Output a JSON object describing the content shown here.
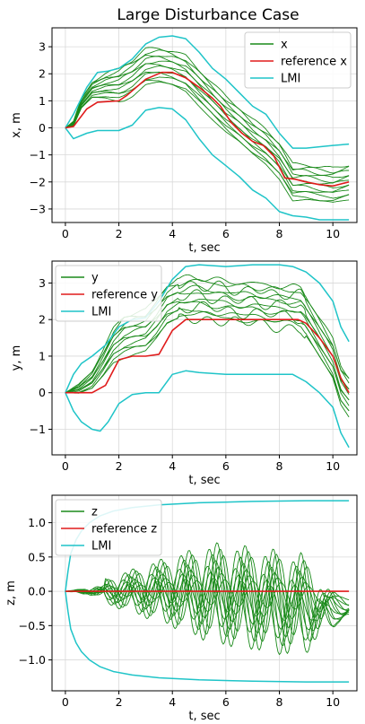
{
  "figure_title": "Large Disturbance Case",
  "colors": {
    "traj": "#1a8a1a",
    "ref": "#e01b1b",
    "lmi": "#1fc4c8",
    "grid": "#d9d9d9"
  },
  "chart_data": [
    {
      "type": "line",
      "id": "x",
      "xlabel": "t, sec",
      "ylabel": "x, m",
      "xlim": [
        -0.5,
        10.9
      ],
      "ylim": [
        -3.5,
        3.7
      ],
      "xticks": [
        0,
        2,
        4,
        6,
        8,
        10
      ],
      "yticks": [
        -3,
        -2,
        -1,
        0,
        1,
        2,
        3
      ],
      "grid": true,
      "legend": {
        "location": "top-right",
        "entries": [
          {
            "label": "x",
            "color": "#1a8a1a"
          },
          {
            "label": "reference x",
            "color": "#e01b1b"
          },
          {
            "label": "LMI",
            "color": "#1fc4c8"
          }
        ]
      },
      "reference": {
        "name": "reference x",
        "x": [
          0,
          0.3,
          0.8,
          1.2,
          2.0,
          2.3,
          3.0,
          3.6,
          4.0,
          4.5,
          5.0,
          5.5,
          5.8,
          6.2,
          6.6,
          7.0,
          7.4,
          7.8,
          8.2,
          8.6,
          9.0,
          9.5,
          10.0,
          10.6
        ],
        "y": [
          0,
          0.05,
          0.7,
          0.95,
          1.0,
          1.2,
          1.8,
          2.05,
          2.05,
          1.85,
          1.5,
          1.1,
          0.8,
          0.2,
          -0.2,
          -0.5,
          -0.65,
          -1.05,
          -1.85,
          -1.9,
          -2.0,
          -2.1,
          -2.15,
          -2.0
        ]
      },
      "bounds": {
        "name": "LMI",
        "upper": {
          "x": [
            0,
            0.3,
            0.8,
            1.2,
            1.6,
            2.0,
            2.5,
            3.0,
            3.5,
            4.0,
            4.5,
            5.0,
            5.5,
            6.0,
            6.5,
            7.0,
            7.5,
            8.0,
            8.5,
            9.0,
            9.5,
            10.0,
            10.6
          ],
          "y": [
            0,
            0.5,
            1.5,
            2.05,
            2.1,
            2.2,
            2.55,
            3.1,
            3.35,
            3.4,
            3.3,
            2.8,
            2.2,
            1.8,
            1.3,
            0.8,
            0.5,
            -0.2,
            -0.75,
            -0.75,
            -0.7,
            -0.65,
            -0.6
          ]
        },
        "lower": {
          "x": [
            0,
            0.3,
            0.8,
            1.2,
            2.0,
            2.5,
            3.0,
            3.5,
            4.0,
            4.5,
            5.0,
            5.5,
            6.0,
            6.5,
            7.0,
            7.5,
            8.0,
            8.5,
            9.0,
            9.5,
            10.0,
            10.6
          ],
          "y": [
            0,
            -0.4,
            -0.2,
            -0.1,
            -0.1,
            0.1,
            0.65,
            0.75,
            0.7,
            0.3,
            -0.4,
            -1.0,
            -1.4,
            -1.8,
            -2.3,
            -2.6,
            -3.1,
            -3.25,
            -3.3,
            -3.4,
            -3.4,
            -3.4
          ]
        }
      },
      "trajectories": {
        "name": "x",
        "count": 12,
        "spread": [
          -0.65,
          0.65
        ],
        "center": {
          "x": [
            0,
            0.3,
            0.6,
            1.0,
            1.5,
            2.0,
            2.5,
            3.0,
            3.5,
            4.0,
            4.5,
            5.0,
            5.5,
            6.0,
            6.5,
            7.0,
            7.5,
            8.0,
            8.5,
            9.0,
            9.5,
            10.0,
            10.6
          ],
          "y": [
            0,
            0.15,
            0.9,
            1.4,
            1.55,
            1.6,
            1.85,
            2.25,
            2.3,
            2.2,
            2.0,
            1.5,
            1.0,
            0.5,
            0.1,
            -0.35,
            -0.7,
            -1.2,
            -2.0,
            -2.0,
            -2.1,
            -2.15,
            -2.0
          ]
        }
      }
    },
    {
      "type": "line",
      "id": "y",
      "xlabel": "t, sec",
      "ylabel": "y, m",
      "xlim": [
        -0.5,
        10.9
      ],
      "ylim": [
        -1.7,
        3.6
      ],
      "xticks": [
        0,
        2,
        4,
        6,
        8,
        10
      ],
      "yticks": [
        -1,
        0,
        1,
        2,
        3
      ],
      "grid": true,
      "legend": {
        "location": "top-left",
        "entries": [
          {
            "label": "y",
            "color": "#1a8a1a"
          },
          {
            "label": "reference y",
            "color": "#e01b1b"
          },
          {
            "label": "LMI",
            "color": "#1fc4c8"
          }
        ]
      },
      "reference": {
        "name": "reference y",
        "x": [
          0,
          1.0,
          1.5,
          2.0,
          2.5,
          3.0,
          3.5,
          4.0,
          4.5,
          5.0,
          6.0,
          7.0,
          8.0,
          8.7,
          9.0,
          9.5,
          10.0,
          10.3,
          10.6
        ],
        "y": [
          0,
          0,
          0.2,
          0.9,
          1.0,
          1.0,
          1.05,
          1.7,
          2.0,
          2.0,
          2.0,
          2.0,
          2.0,
          2.0,
          1.9,
          1.5,
          1.0,
          0.4,
          0
        ]
      },
      "bounds": {
        "name": "LMI",
        "upper": {
          "x": [
            0,
            0.3,
            0.6,
            1.0,
            1.5,
            2.0,
            2.5,
            3.0,
            3.5,
            4.0,
            4.5,
            5.0,
            6.0,
            7.0,
            8.0,
            8.5,
            9.0,
            9.5,
            10.0,
            10.3,
            10.6
          ],
          "y": [
            0,
            0.5,
            0.8,
            1.0,
            1.3,
            1.8,
            2.0,
            2.05,
            2.5,
            3.1,
            3.45,
            3.5,
            3.45,
            3.5,
            3.5,
            3.45,
            3.3,
            3.0,
            2.5,
            1.8,
            1.4
          ]
        },
        "lower": {
          "x": [
            0,
            0.3,
            0.6,
            1.0,
            1.3,
            1.6,
            2.0,
            2.5,
            3.0,
            3.5,
            4.0,
            4.5,
            5.0,
            6.0,
            7.0,
            8.0,
            8.5,
            9.0,
            9.5,
            10.0,
            10.3,
            10.6
          ],
          "y": [
            0,
            -0.5,
            -0.8,
            -1.0,
            -1.05,
            -0.8,
            -0.3,
            -0.05,
            0,
            0,
            0.5,
            0.6,
            0.55,
            0.5,
            0.5,
            0.5,
            0.5,
            0.3,
            0,
            -0.4,
            -1.1,
            -1.5
          ]
        }
      },
      "trajectories": {
        "name": "y",
        "count": 12,
        "spread": [
          -0.55,
          0.55
        ],
        "center": {
          "x": [
            0,
            0.5,
            1.0,
            1.4,
            1.8,
            2.2,
            2.6,
            3.0,
            3.4,
            3.8,
            4.2,
            4.6,
            5.0,
            5.5,
            6.0,
            6.5,
            7.0,
            7.5,
            8.0,
            8.5,
            8.8,
            9.0,
            9.5,
            10.0,
            10.3,
            10.6
          ],
          "y": [
            0,
            0.1,
            0.35,
            0.8,
            1.3,
            1.55,
            1.65,
            1.7,
            2.0,
            2.4,
            2.55,
            2.6,
            2.6,
            2.55,
            2.5,
            2.45,
            2.45,
            2.4,
            2.35,
            2.35,
            2.3,
            2.1,
            1.5,
            0.9,
            0.2,
            -0.1
          ]
        }
      }
    },
    {
      "type": "line",
      "id": "z",
      "xlabel": "t, sec",
      "ylabel": "z, m",
      "xlim": [
        -0.5,
        10.9
      ],
      "ylim": [
        -1.45,
        1.4
      ],
      "xticks": [
        0,
        2,
        4,
        6,
        8,
        10
      ],
      "yticks": [
        -1.0,
        -0.5,
        0.0,
        0.5,
        1.0
      ],
      "grid": true,
      "legend": {
        "location": "top-left",
        "entries": [
          {
            "label": "z",
            "color": "#1a8a1a"
          },
          {
            "label": "reference z",
            "color": "#e01b1b"
          },
          {
            "label": "LMI",
            "color": "#1fc4c8"
          }
        ]
      },
      "reference": {
        "name": "reference z",
        "x": [
          0,
          10.6
        ],
        "y": [
          0,
          0
        ]
      },
      "bounds": {
        "name": "LMI",
        "upper": {
          "x": [
            0,
            0.1,
            0.2,
            0.4,
            0.6,
            0.9,
            1.3,
            1.8,
            2.5,
            3.5,
            5.0,
            7.0,
            9.0,
            10.6
          ],
          "y": [
            0,
            0.3,
            0.55,
            0.75,
            0.88,
            1.0,
            1.1,
            1.17,
            1.22,
            1.26,
            1.29,
            1.31,
            1.32,
            1.32
          ]
        },
        "lower": {
          "x": [
            0,
            0.1,
            0.2,
            0.4,
            0.6,
            0.9,
            1.3,
            1.8,
            2.5,
            3.5,
            5.0,
            7.0,
            9.0,
            10.6
          ],
          "y": [
            0,
            -0.3,
            -0.55,
            -0.75,
            -0.88,
            -1.0,
            -1.1,
            -1.17,
            -1.22,
            -1.26,
            -1.29,
            -1.31,
            -1.32,
            -1.32
          ]
        }
      },
      "trajectories": {
        "name": "z",
        "count": 12,
        "oscillation": {
          "amplitude_max": 0.75,
          "period_s": 1.05,
          "start_s": 1.5
        },
        "drift": {
          "x": [
            0,
            2,
            4,
            6,
            7,
            8,
            9,
            10,
            10.6
          ],
          "y": [
            0,
            0,
            0,
            -0.05,
            -0.1,
            -0.15,
            -0.2,
            -0.25,
            -0.25
          ]
        }
      }
    }
  ]
}
